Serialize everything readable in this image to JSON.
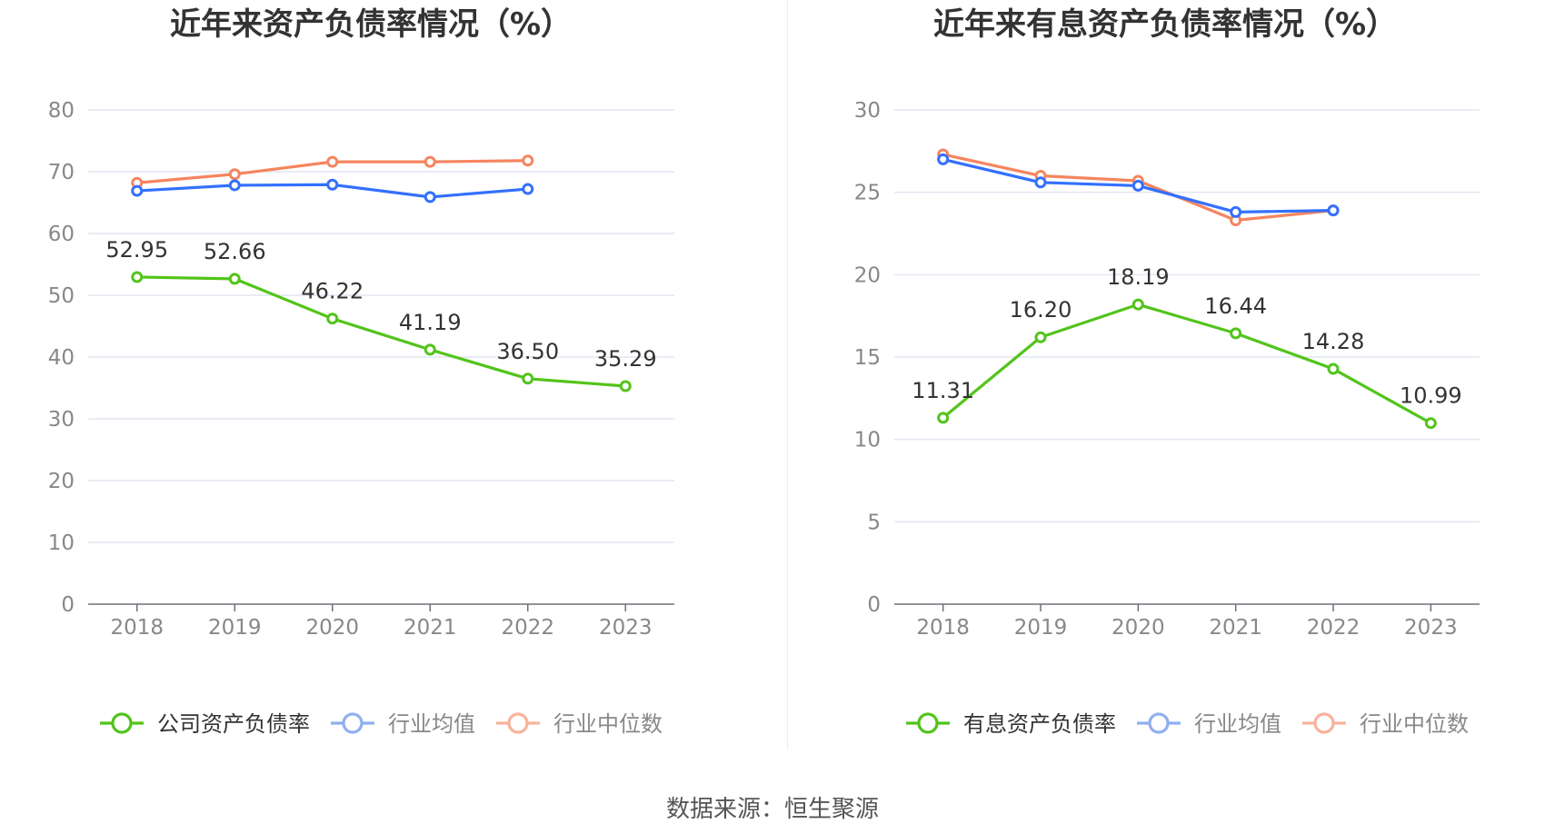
{
  "source_text": "数据来源：恒生聚源",
  "colors": {
    "company": "#52c41a",
    "average": "#3370ff",
    "median": "#f5855f",
    "average_legend": "#8fb0f0",
    "median_legend": "#f7b39c",
    "grid": "#e0e6f1",
    "axis": "#6e7079"
  },
  "chart_data": [
    {
      "type": "line",
      "title": "近年来资产负债率情况（%）",
      "categories": [
        "2018",
        "2019",
        "2020",
        "2021",
        "2022",
        "2023"
      ],
      "ylim": [
        0,
        80
      ],
      "yticks": [
        0,
        10,
        20,
        30,
        40,
        50,
        60,
        70,
        80
      ],
      "grid": true,
      "legend_position": "bottom",
      "series": [
        {
          "name": "公司资产负债率",
          "key": "company",
          "values": [
            52.95,
            52.66,
            46.22,
            41.19,
            36.5,
            35.29
          ],
          "labels": [
            "52.95",
            "52.66",
            "46.22",
            "41.19",
            "36.50",
            "35.29"
          ]
        },
        {
          "name": "行业均值",
          "key": "average",
          "values": [
            66.9,
            67.8,
            67.9,
            65.9,
            67.2,
            null
          ]
        },
        {
          "name": "行业中位数",
          "key": "median",
          "values": [
            68.2,
            69.6,
            71.6,
            71.6,
            71.8,
            null
          ]
        }
      ]
    },
    {
      "type": "line",
      "title": "近年来有息资产负债率情况（%）",
      "categories": [
        "2018",
        "2019",
        "2020",
        "2021",
        "2022",
        "2023"
      ],
      "ylim": [
        0,
        30
      ],
      "yticks": [
        0,
        5,
        10,
        15,
        20,
        25,
        30
      ],
      "grid": true,
      "legend_position": "bottom",
      "series": [
        {
          "name": "有息资产负债率",
          "key": "company",
          "values": [
            11.31,
            16.2,
            18.19,
            16.44,
            14.28,
            10.99
          ],
          "labels": [
            "11.31",
            "16.20",
            "18.19",
            "16.44",
            "14.28",
            "10.99"
          ]
        },
        {
          "name": "行业均值",
          "key": "average",
          "values": [
            27.0,
            25.6,
            25.4,
            23.8,
            23.9,
            null
          ]
        },
        {
          "name": "行业中位数",
          "key": "median",
          "values": [
            27.3,
            26.0,
            25.7,
            23.3,
            23.9,
            null
          ]
        }
      ]
    }
  ]
}
